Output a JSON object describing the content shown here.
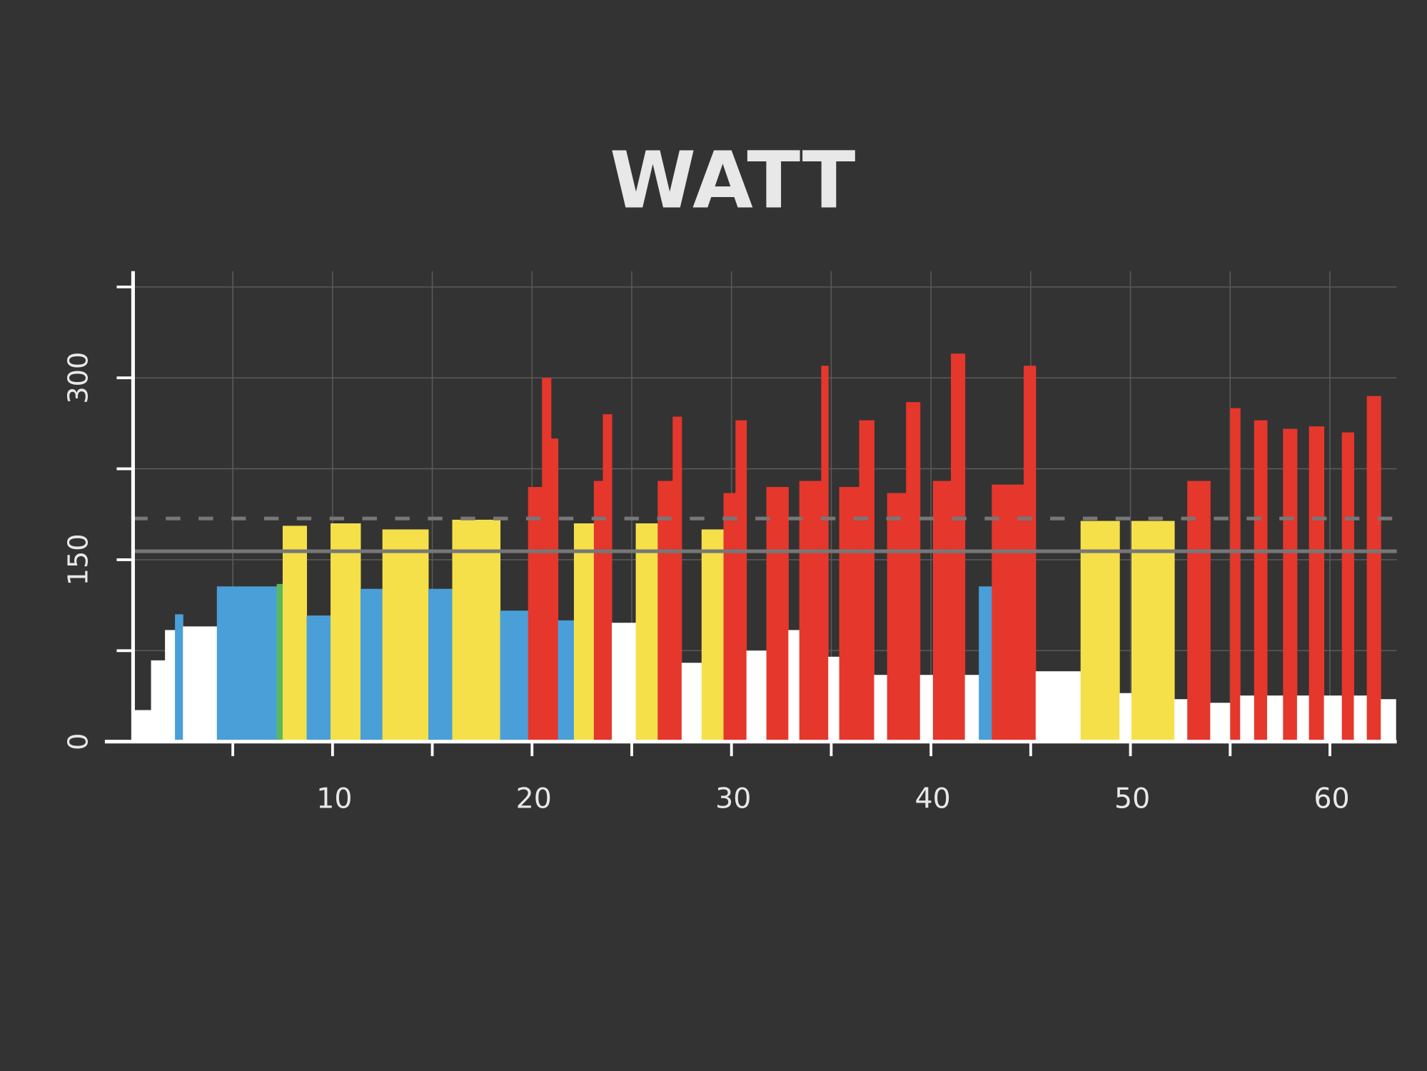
{
  "chart_data": {
    "type": "histogram",
    "title": "WATT",
    "xlim": [
      0,
      63.35
    ],
    "ylim": [
      0,
      388
    ],
    "xticks": [
      10,
      20,
      30,
      40,
      50,
      60
    ],
    "xminor": [
      5,
      15,
      25,
      35,
      45,
      55
    ],
    "yticks": [
      0,
      150,
      300
    ],
    "yminor": [
      75,
      225,
      375
    ],
    "grid": true,
    "reference_lines": [
      {
        "value": 157,
        "style": "solid",
        "color": "#777777"
      },
      {
        "value": 184,
        "style": "dashed",
        "color": "#777777"
      }
    ],
    "bins": [
      0,
      0.9,
      1.6,
      2.1,
      2.5,
      4.2,
      7.2,
      7.5,
      8.7,
      9.9,
      11.4,
      12.5,
      14.8,
      16.0,
      18.4,
      19.8,
      20.5,
      20.95,
      21.3,
      22.1,
      23.1,
      23.55,
      24.0,
      25.2,
      26.3,
      27.05,
      27.5,
      28.5,
      29.6,
      30.2,
      30.75,
      31.75,
      32.85,
      33.4,
      34.5,
      34.85,
      35.4,
      36.4,
      37.15,
      37.8,
      38.75,
      39.45,
      40.1,
      41.0,
      41.7,
      42.4,
      43.05,
      44.65,
      45.25,
      47.5,
      49.45,
      50.05,
      52.2,
      52.85,
      54.0,
      55.0,
      55.5,
      56.2,
      56.85,
      57.65,
      58.35,
      58.95,
      59.7,
      60.6,
      61.2,
      61.85,
      62.55,
      63.3
    ],
    "values": [
      26,
      67,
      92,
      105,
      95,
      128,
      130,
      178,
      104,
      180,
      126,
      175,
      126,
      183,
      108,
      210,
      300,
      250,
      100,
      180,
      215,
      270,
      98,
      180,
      215,
      268,
      65,
      175,
      205,
      265,
      75,
      210,
      92,
      215,
      310,
      70,
      210,
      265,
      55,
      205,
      280,
      55,
      215,
      320,
      55,
      128,
      212,
      310,
      58,
      182,
      40,
      182,
      35,
      215,
      32,
      275,
      38,
      265,
      38,
      258,
      38,
      260,
      38,
      255,
      38,
      285,
      35
    ],
    "colors": [
      "#ffffff",
      "#ffffff",
      "#ffffff",
      "#4a9fd8",
      "#ffffff",
      "#4a9fd8",
      "#5cb85c",
      "#f5e04a",
      "#4a9fd8",
      "#f5e04a",
      "#4a9fd8",
      "#f5e04a",
      "#4a9fd8",
      "#f5e04a",
      "#4a9fd8",
      "#e5372c",
      "#e5372c",
      "#e5372c",
      "#4a9fd8",
      "#f5e04a",
      "#e5372c",
      "#e5372c",
      "#ffffff",
      "#f5e04a",
      "#e5372c",
      "#e5372c",
      "#ffffff",
      "#f5e04a",
      "#e5372c",
      "#e5372c",
      "#ffffff",
      "#e5372c",
      "#ffffff",
      "#e5372c",
      "#e5372c",
      "#ffffff",
      "#e5372c",
      "#e5372c",
      "#ffffff",
      "#e5372c",
      "#e5372c",
      "#ffffff",
      "#e5372c",
      "#e5372c",
      "#ffffff",
      "#4a9fd8",
      "#e5372c",
      "#e5372c",
      "#ffffff",
      "#f5e04a",
      "#ffffff",
      "#f5e04a",
      "#ffffff",
      "#e5372c",
      "#ffffff",
      "#e5372c",
      "#ffffff",
      "#e5372c",
      "#ffffff",
      "#e5372c",
      "#ffffff",
      "#e5372c",
      "#ffffff",
      "#e5372c",
      "#ffffff",
      "#e5372c",
      "#ffffff"
    ]
  }
}
